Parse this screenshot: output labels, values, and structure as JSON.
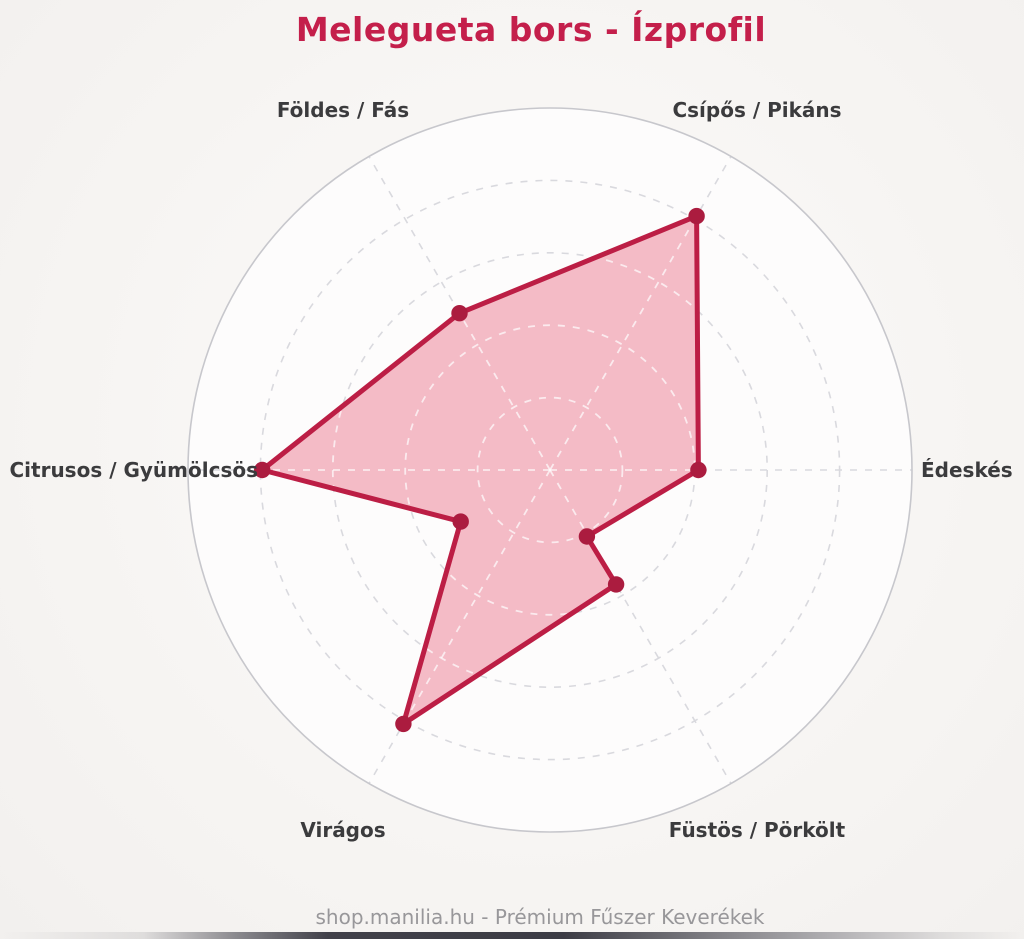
{
  "chart_data": {
    "type": "radar",
    "title": "Melegueta bors - Ízprofil",
    "axes": [
      "Csípős / Pikáns",
      "Édeskés",
      "Füstös / Pörkölt",
      "Virágos",
      "Citrusos / Gyümölcsös",
      "Földes / Fás"
    ],
    "axis_angles_deg": [
      60,
      0,
      300,
      240,
      180,
      120
    ],
    "values": [
      8,
      4,
      3.7,
      8,
      8,
      5
    ],
    "scale": {
      "min": 0,
      "max": 10,
      "ring_values": [
        2,
        4,
        6,
        8
      ],
      "outer_ring_value": 10,
      "grid": "dashed-circles"
    },
    "drawn_polygon": [
      {
        "angle_deg": 60,
        "value": 8.1
      },
      {
        "angle_deg": 0,
        "value": 4.1
      },
      {
        "angle_deg": 299,
        "value": 2.1
      },
      {
        "angle_deg": 300,
        "value": 3.65
      },
      {
        "angle_deg": 240,
        "value": 8.1
      },
      {
        "angle_deg": 210,
        "value": 2.85
      },
      {
        "angle_deg": 180,
        "value": 7.95
      },
      {
        "angle_deg": 120,
        "value": 5.0
      }
    ],
    "legend_position": "none",
    "colors": {
      "line": "#bc1e45",
      "fill": "#f3b7c3",
      "marker": "#ab1c3f",
      "grid": "#d9d9de",
      "inner_grid": "#ffffff",
      "outer_ring": "#c7c7cc",
      "chart_bg": "#fdfcfc",
      "title": "#c41f4b",
      "label": "#3b3b3d"
    }
  },
  "footer": {
    "text": "shop.manilia.hu - Prémium Fűszer Keverékek"
  }
}
